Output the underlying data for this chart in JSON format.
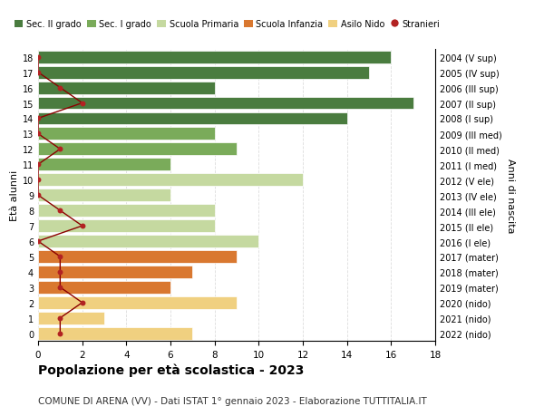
{
  "ages": [
    18,
    17,
    16,
    15,
    14,
    13,
    12,
    11,
    10,
    9,
    8,
    7,
    6,
    5,
    4,
    3,
    2,
    1,
    0
  ],
  "right_labels": [
    "2004 (V sup)",
    "2005 (IV sup)",
    "2006 (III sup)",
    "2007 (II sup)",
    "2008 (I sup)",
    "2009 (III med)",
    "2010 (II med)",
    "2011 (I med)",
    "2012 (V ele)",
    "2013 (IV ele)",
    "2014 (III ele)",
    "2015 (II ele)",
    "2016 (I ele)",
    "2017 (mater)",
    "2018 (mater)",
    "2019 (mater)",
    "2020 (nido)",
    "2021 (nido)",
    "2022 (nido)"
  ],
  "bar_values": [
    16,
    15,
    8,
    17,
    14,
    8,
    9,
    6,
    12,
    6,
    8,
    8,
    10,
    9,
    7,
    6,
    9,
    3,
    7
  ],
  "bar_colors": [
    "#4a7c3f",
    "#4a7c3f",
    "#4a7c3f",
    "#4a7c3f",
    "#4a7c3f",
    "#7aab5a",
    "#7aab5a",
    "#7aab5a",
    "#c5d9a0",
    "#c5d9a0",
    "#c5d9a0",
    "#c5d9a0",
    "#c5d9a0",
    "#d97830",
    "#d97830",
    "#d97830",
    "#f0d080",
    "#f0d080",
    "#f0d080"
  ],
  "stranieri_values": [
    0,
    0,
    1,
    2,
    0,
    0,
    1,
    0,
    0,
    0,
    1,
    2,
    0,
    1,
    1,
    1,
    2,
    1,
    1
  ],
  "stranieri_color": "#b22222",
  "stranieri_line_color": "#8b0000",
  "legend_entries": [
    {
      "label": "Sec. II grado",
      "color": "#4a7c3f"
    },
    {
      "label": "Sec. I grado",
      "color": "#7aab5a"
    },
    {
      "label": "Scuola Primaria",
      "color": "#c5d9a0"
    },
    {
      "label": "Scuola Infanzia",
      "color": "#d97830"
    },
    {
      "label": "Asilo Nido",
      "color": "#f0d080"
    },
    {
      "label": "Stranieri",
      "color": "#b22222"
    }
  ],
  "ylabel_left": "Età alunni",
  "ylabel_right": "Anni di nascita",
  "xlim": [
    0,
    18
  ],
  "xticks": [
    0,
    2,
    4,
    6,
    8,
    10,
    12,
    14,
    16,
    18
  ],
  "title": "Popolazione per età scolastica - 2023",
  "subtitle": "COMUNE DI ARENA (VV) - Dati ISTAT 1° gennaio 2023 - Elaborazione TUTTITALIA.IT",
  "title_fontsize": 10,
  "subtitle_fontsize": 7.5,
  "bg_color": "#ffffff",
  "grid_color": "#dddddd",
  "bar_height": 0.82
}
